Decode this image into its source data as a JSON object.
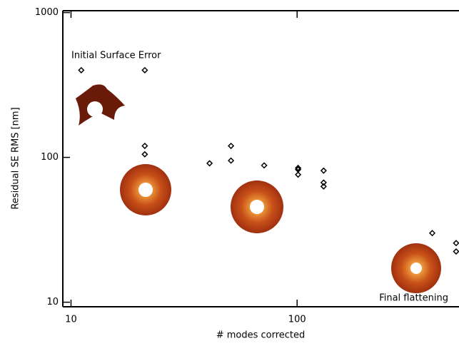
{
  "chart_data": {
    "type": "scatter",
    "xlabel": "# modes corrected",
    "ylabel": "Residual SE RMS [nm]",
    "annotations": [
      "Initial Surface Error",
      "Final flattening"
    ],
    "x": [
      11.1,
      21.2,
      21.2,
      21.2,
      41,
      51,
      51,
      71.5,
      101,
      101,
      101,
      131,
      131,
      131,
      396,
      505,
      505
    ],
    "y": [
      400,
      400,
      120,
      105,
      91,
      120,
      95,
      88,
      84.5,
      82.5,
      76,
      81,
      67,
      63,
      30,
      25.6,
      22.4
    ],
    "color": "#000000",
    "xlog": true,
    "ylog": true,
    "xlim": [
      9.2,
      520
    ],
    "ylim": [
      9.3,
      1030
    ],
    "xticks": [
      10,
      100
    ],
    "yticks": [
      10,
      100,
      1000
    ]
  }
}
